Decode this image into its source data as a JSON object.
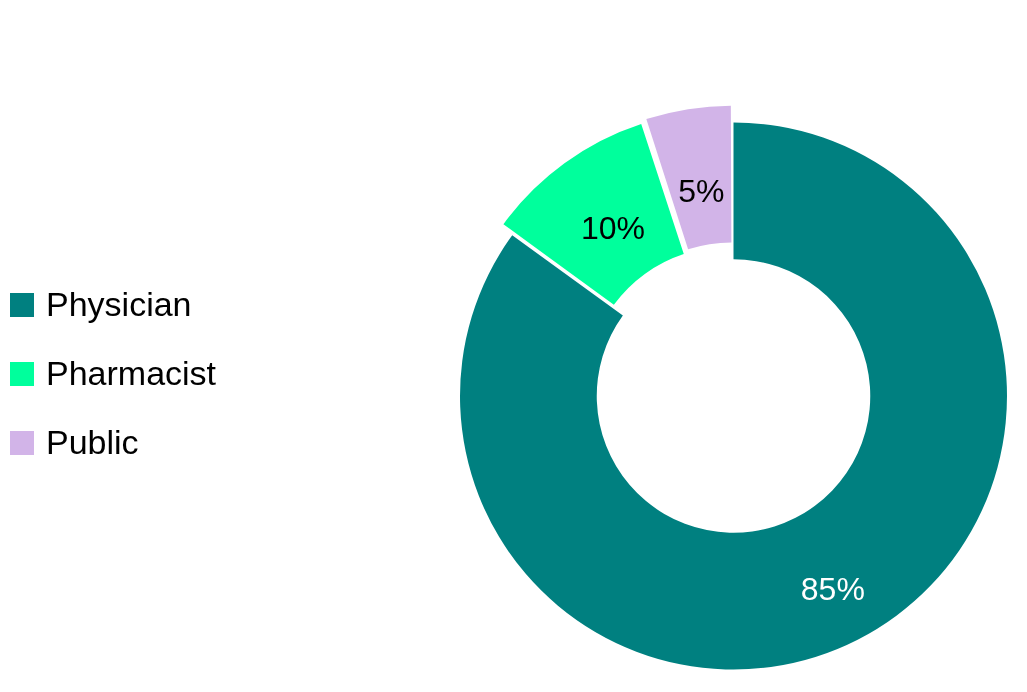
{
  "chart_data": {
    "type": "donut",
    "categories": [
      "Physician",
      "Pharmacist",
      "Public"
    ],
    "values": [
      85,
      10,
      5
    ],
    "colors": [
      "#008080",
      "#00ff9c",
      "#d2b4e8"
    ],
    "value_labels": [
      "85%",
      "10%",
      "5%"
    ],
    "legend": "left"
  }
}
